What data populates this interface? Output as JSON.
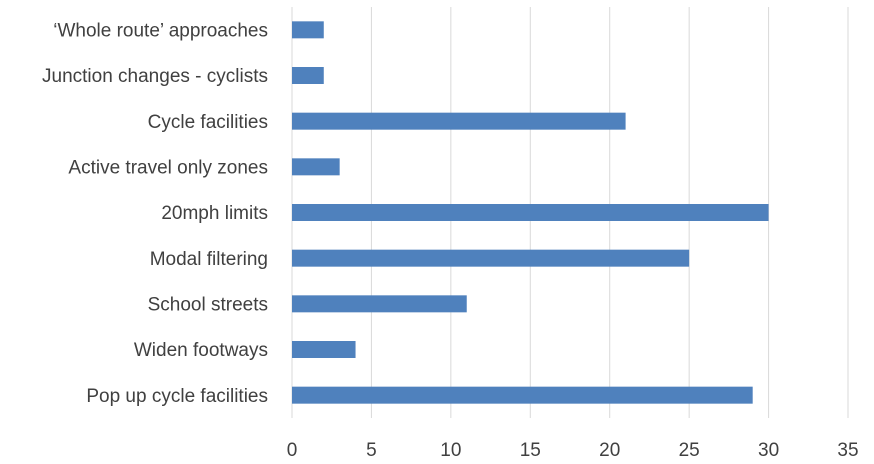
{
  "chart_data": {
    "type": "bar",
    "orientation": "horizontal",
    "title": "",
    "xlabel": "",
    "ylabel": "",
    "categories": [
      "‘Whole route’ approaches",
      "Junction changes - cyclists",
      "Cycle facilities",
      "Active travel only zones",
      "20mph limits",
      "Modal filtering",
      "School streets",
      "Widen footways",
      "Pop up cycle facilities"
    ],
    "values": [
      2,
      2,
      21,
      3,
      30,
      25,
      11,
      4,
      29
    ],
    "xlim": [
      0,
      35
    ],
    "xticks": [
      "0",
      "5",
      "10",
      "15",
      "20",
      "25",
      "30",
      "35"
    ],
    "grid": "vertical",
    "legend": "none",
    "bar_color": "#4f81bd",
    "grid_color": "#d9d9d9",
    "text_color": "#404040"
  }
}
